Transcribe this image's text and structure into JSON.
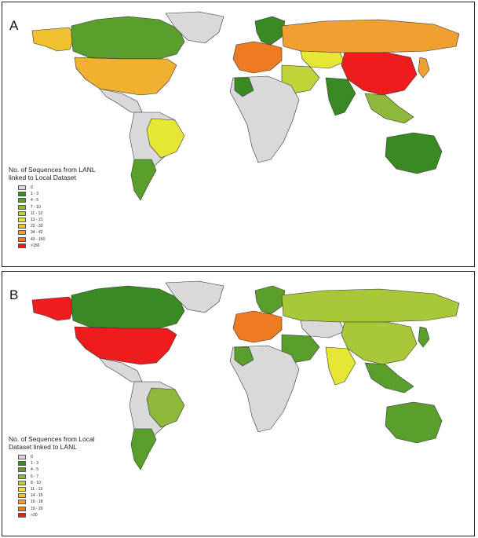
{
  "panels": [
    {
      "letter": "A",
      "legend_title_line1": "No. of Sequences from LANL",
      "legend_title_line2": "linked to Local Dataset",
      "legend": [
        {
          "label": "0",
          "color": "#d9d9d9"
        },
        {
          "label": "1 - 3",
          "color": "#3a8a23"
        },
        {
          "label": "4 - 6",
          "color": "#5a9e2c"
        },
        {
          "label": "7 - 10",
          "color": "#8db83a"
        },
        {
          "label": "11 - 12",
          "color": "#c0d43a"
        },
        {
          "label": "13 - 21",
          "color": "#e6e635"
        },
        {
          "label": "22 - 33",
          "color": "#f0c030"
        },
        {
          "label": "34 - 42",
          "color": "#f0a030"
        },
        {
          "label": "43 - 150",
          "color": "#ee7a22"
        },
        {
          "label": ">150",
          "color": "#ee1c1c"
        }
      ],
      "regions": {
        "north_america": "#f0b030",
        "canada": "#5a9e2c",
        "alaska": "#f0c030",
        "greenland": "#d9d9d9",
        "central_america": "#d9d9d9",
        "south_america": "#d9d9d9",
        "brazil": "#e6e635",
        "argentina_chile": "#5a9e2c",
        "africa": "#d9d9d9",
        "morocco": "#3a8a23",
        "russia": "#f0a030",
        "europe": "#ee7a22",
        "scandinavia": "#3a8a23",
        "kazakhstan": "#e6e635",
        "china": "#ee1c1c",
        "india": "#3a8a23",
        "middle_east": "#c0d43a",
        "southeast_asia": "#8db83a",
        "australia": "#3a8a23",
        "japan": "#f0a030"
      }
    },
    {
      "letter": "B",
      "legend_title_line1": "No. of Sequences from Local",
      "legend_title_line2": "Dataset linked to LANL",
      "legend": [
        {
          "label": "0",
          "color": "#d9d9d9"
        },
        {
          "label": "1 - 3",
          "color": "#3a8a23"
        },
        {
          "label": "4 - 5",
          "color": "#5a9e2c"
        },
        {
          "label": "6 - 7",
          "color": "#8db83a"
        },
        {
          "label": "8 - 10",
          "color": "#c0d43a"
        },
        {
          "label": "11 - 13",
          "color": "#e6e635"
        },
        {
          "label": "14 - 15",
          "color": "#f0c030"
        },
        {
          "label": "16 - 18",
          "color": "#f0a030"
        },
        {
          "label": "19 - 20",
          "color": "#ee7a22"
        },
        {
          "label": ">20",
          "color": "#ee1c1c"
        }
      ],
      "regions": {
        "north_america": "#ee1c1c",
        "canada": "#3a8a23",
        "alaska": "#ee1c1c",
        "greenland": "#d9d9d9",
        "central_america": "#d9d9d9",
        "south_america": "#d9d9d9",
        "brazil": "#8db83a",
        "argentina_chile": "#5a9e2c",
        "africa": "#d9d9d9",
        "morocco": "#5a9e2c",
        "russia": "#a8c83a",
        "europe": "#ee7a22",
        "scandinavia": "#5a9e2c",
        "kazakhstan": "#d9d9d9",
        "china": "#a8c83a",
        "india": "#e6e635",
        "middle_east": "#5a9e2c",
        "southeast_asia": "#5a9e2c",
        "australia": "#5a9e2c",
        "japan": "#5a9e2c"
      }
    }
  ]
}
